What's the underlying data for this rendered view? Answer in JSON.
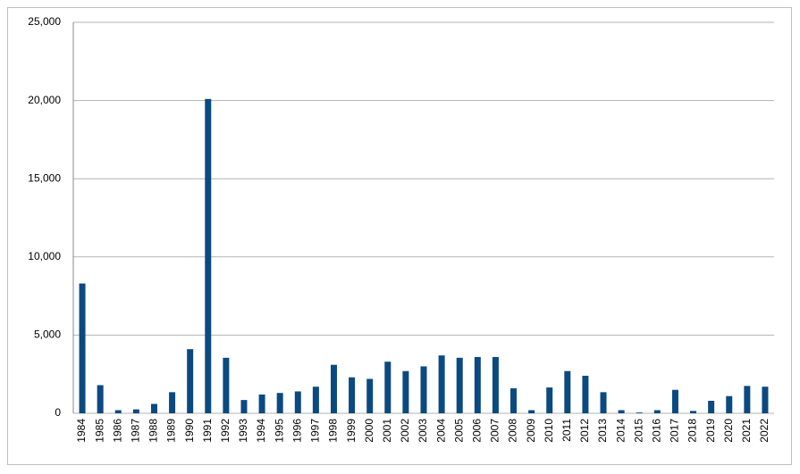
{
  "chart_data": {
    "type": "bar",
    "categories": [
      "1984",
      "1985",
      "1986",
      "1987",
      "1988",
      "1989",
      "1990",
      "1991",
      "1992",
      "1993",
      "1994",
      "1995",
      "1996",
      "1997",
      "1998",
      "1999",
      "2000",
      "2001",
      "2002",
      "2003",
      "2004",
      "2005",
      "2006",
      "2007",
      "2008",
      "2009",
      "2010",
      "2011",
      "2012",
      "2013",
      "2014",
      "2015",
      "2016",
      "2017",
      "2018",
      "2019",
      "2020",
      "2021",
      "2022"
    ],
    "values": [
      8300,
      1800,
      200,
      250,
      600,
      1350,
      4100,
      20100,
      3550,
      850,
      1200,
      1300,
      1400,
      1700,
      3100,
      2300,
      2200,
      3300,
      2700,
      3000,
      3700,
      3550,
      3600,
      3600,
      1600,
      200,
      1650,
      2700,
      2400,
      1350,
      200,
      50,
      200,
      1500,
      150,
      800,
      1100,
      1750,
      1700
    ],
    "color": "#0b4a80",
    "ylim": [
      0,
      25000
    ],
    "yticks": [
      0,
      {
        "value": 5000,
        "label": "5,000"
      },
      {
        "value": 10000,
        "label": "10,000"
      },
      {
        "value": 15000,
        "label": "15,000"
      },
      {
        "value": 20000,
        "label": "20,000"
      },
      {
        "value": 25000,
        "label": "25,000"
      }
    ],
    "grid": true
  }
}
